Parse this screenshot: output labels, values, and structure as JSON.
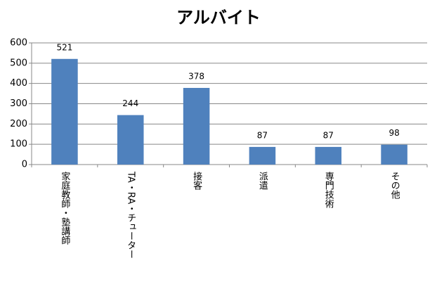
{
  "chart_data": {
    "type": "bar",
    "title": "アルバイト",
    "categories": [
      "家庭教師・塾講師",
      "TA・RA・チューター",
      "接客",
      "派遣",
      "専門技術",
      "その他"
    ],
    "values": [
      521,
      244,
      378,
      87,
      87,
      98
    ],
    "color": "#4f81bd",
    "ylim": [
      0,
      600
    ],
    "yticks": [
      0,
      100,
      200,
      300,
      400,
      500,
      600
    ],
    "grid": true
  }
}
